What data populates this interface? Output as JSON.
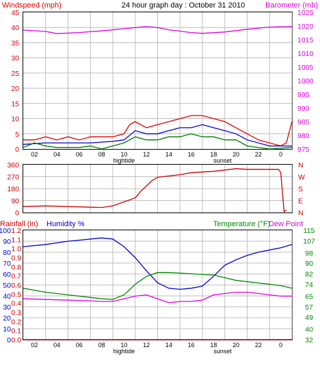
{
  "header": {
    "left_label": "Windspeed (mph)",
    "title": "24 hour graph day : October 31 2010",
    "right_label": "Barometer (mb)"
  },
  "colors": {
    "wind": "#dd0000",
    "gust": "#0000cc",
    "wind_green": "#007700",
    "baro": "#dd00dd",
    "direction": "#cc0000",
    "humidity": "#0000cc",
    "temperature": "#008800",
    "dewpoint": "#dd00dd",
    "rain": "#cc0000"
  },
  "x_ticks": [
    "02",
    "04",
    "06",
    "08",
    "10",
    "12",
    "14",
    "16",
    "18",
    "20",
    "22",
    "0"
  ],
  "annotations": {
    "hightide": "hightide",
    "sunset": "sunset"
  },
  "panel3_labels": {
    "rain": "Rainfall (in)",
    "humidity": "Humidity %",
    "temperature": "Temperature (°F)",
    "dewpoint": "Dew Point"
  },
  "chart_data": [
    {
      "type": "line",
      "name_key": "wind_baro",
      "title": "24 hour graph day : October 31 2010",
      "xlim": [
        0,
        24
      ],
      "y_left": {
        "label": "Windspeed (mph)",
        "lim": [
          0,
          45
        ],
        "ticks": [
          "0",
          "5",
          "10",
          "15",
          "20",
          "25",
          "30",
          "35",
          "40",
          "45"
        ]
      },
      "y_right": {
        "label": "Barometer (mb)",
        "lim": [
          975,
          1025
        ],
        "ticks": [
          "975",
          "980",
          "985",
          "990",
          "995",
          "1000",
          "1005",
          "1010",
          "1015",
          "1020",
          "1025"
        ]
      },
      "series": [
        {
          "axis": "right",
          "color_key": "baro",
          "points": [
            [
              0,
              1018.5
            ],
            [
              2,
              1018
            ],
            [
              3,
              1017.2
            ],
            [
              5,
              1017.6
            ],
            [
              7,
              1018.2
            ],
            [
              9,
              1019
            ],
            [
              11,
              1019.8
            ],
            [
              12,
              1019.4
            ],
            [
              13,
              1018.6
            ],
            [
              15,
              1017.6
            ],
            [
              16,
              1017.3
            ],
            [
              18,
              1017.8
            ],
            [
              20,
              1018.8
            ],
            [
              22,
              1019.6
            ],
            [
              24,
              1019.8
            ]
          ]
        },
        {
          "axis": "left",
          "color_key": "wind",
          "points": [
            [
              0,
              3
            ],
            [
              1,
              3
            ],
            [
              2,
              4
            ],
            [
              3,
              3
            ],
            [
              4,
              4
            ],
            [
              5,
              3
            ],
            [
              6,
              4
            ],
            [
              7,
              4
            ],
            [
              8,
              4
            ],
            [
              9,
              5
            ],
            [
              9.5,
              8
            ],
            [
              10,
              9
            ],
            [
              11,
              7
            ],
            [
              12,
              8
            ],
            [
              13,
              9
            ],
            [
              14,
              10
            ],
            [
              15,
              11
            ],
            [
              16,
              11
            ],
            [
              17,
              10
            ],
            [
              18,
              9
            ],
            [
              19,
              7
            ],
            [
              20,
              5
            ],
            [
              21,
              3
            ],
            [
              22,
              2
            ],
            [
              23,
              1
            ],
            [
              23.5,
              2
            ],
            [
              24,
              9
            ]
          ]
        },
        {
          "axis": "left",
          "color_key": "gust",
          "points": [
            [
              0,
              1.5
            ],
            [
              2,
              2
            ],
            [
              4,
              2
            ],
            [
              6,
              2
            ],
            [
              8,
              2.5
            ],
            [
              9,
              3
            ],
            [
              10,
              6
            ],
            [
              11,
              5
            ],
            [
              12,
              5
            ],
            [
              13,
              6
            ],
            [
              14,
              7
            ],
            [
              15,
              7
            ],
            [
              16,
              8
            ],
            [
              17,
              7
            ],
            [
              18,
              6
            ],
            [
              19,
              5
            ],
            [
              20,
              3
            ],
            [
              22,
              1
            ],
            [
              24,
              1
            ]
          ]
        },
        {
          "axis": "left",
          "color_key": "wind_green",
          "points": [
            [
              0,
              0.5
            ],
            [
              1,
              2
            ],
            [
              2,
              1
            ],
            [
              3,
              0.5
            ],
            [
              4,
              0.5
            ],
            [
              5,
              0.5
            ],
            [
              6,
              1
            ],
            [
              7,
              0
            ],
            [
              8,
              1
            ],
            [
              9,
              2
            ],
            [
              10,
              4
            ],
            [
              11,
              3
            ],
            [
              12,
              3
            ],
            [
              13,
              4
            ],
            [
              14,
              4
            ],
            [
              15,
              5
            ],
            [
              16,
              4
            ],
            [
              17,
              4
            ],
            [
              18,
              3
            ],
            [
              19,
              3
            ],
            [
              20,
              1
            ],
            [
              22,
              0
            ],
            [
              24,
              0.5
            ]
          ]
        }
      ]
    },
    {
      "type": "line",
      "name_key": "wind_direction",
      "xlim": [
        0,
        24
      ],
      "y_left": {
        "lim": [
          0,
          360
        ],
        "ticks": [
          "0",
          "90",
          "180",
          "270",
          "360"
        ]
      },
      "y_right": {
        "ticks": [
          "N",
          "E",
          "S",
          "W",
          "N"
        ]
      },
      "series": [
        {
          "axis": "left",
          "color_key": "direction",
          "points": [
            [
              0,
              45
            ],
            [
              2,
              50
            ],
            [
              4,
              45
            ],
            [
              6,
              40
            ],
            [
              7,
              38
            ],
            [
              8,
              50
            ],
            [
              9,
              80
            ],
            [
              10,
              110
            ],
            [
              10.5,
              160
            ],
            [
              11,
              200
            ],
            [
              11.5,
              240
            ],
            [
              12,
              265
            ],
            [
              13,
              275
            ],
            [
              14,
              285
            ],
            [
              15,
              300
            ],
            [
              16,
              305
            ],
            [
              17,
              310
            ],
            [
              18,
              320
            ],
            [
              19,
              330
            ],
            [
              20,
              325
            ],
            [
              22,
              325
            ],
            [
              22.8,
              325
            ],
            [
              23,
              300
            ],
            [
              23.3,
              5
            ],
            [
              23.5,
              20
            ]
          ]
        }
      ]
    },
    {
      "type": "line",
      "name_key": "temp_humidity",
      "xlim": [
        0,
        24
      ],
      "y_left_outer": {
        "label": "Rainfall (in)",
        "lim": [
          0,
          1.2
        ],
        "ticks": [
          "0.0",
          "0.1",
          "0.2",
          "0.3",
          "0.4",
          "0.5",
          "0.6",
          "0.7",
          "0.8",
          "0.9",
          "1.0",
          "1.1",
          "1.2"
        ]
      },
      "y_left_inner": {
        "label": "Humidity %",
        "lim": [
          0,
          100
        ],
        "ticks": [
          "0",
          "10",
          "20",
          "30",
          "40",
          "50",
          "60",
          "70",
          "80",
          "90",
          "100"
        ]
      },
      "y_right": {
        "label": "Temperature (°F)",
        "lim": [
          32,
          115
        ],
        "ticks": [
          "32",
          "40",
          "49",
          "57",
          "65",
          "74",
          "82",
          "90",
          "98",
          "107",
          "115"
        ]
      },
      "series": [
        {
          "axis": "inner",
          "color_key": "humidity",
          "points": [
            [
              0,
              85
            ],
            [
              2,
              87
            ],
            [
              4,
              90
            ],
            [
              6,
              92
            ],
            [
              7,
              93
            ],
            [
              8,
              92
            ],
            [
              9,
              85
            ],
            [
              10,
              75
            ],
            [
              11,
              63
            ],
            [
              12,
              52
            ],
            [
              13,
              47
            ],
            [
              14,
              46
            ],
            [
              15,
              47
            ],
            [
              16,
              49
            ],
            [
              17,
              58
            ],
            [
              18,
              68
            ],
            [
              19,
              73
            ],
            [
              20,
              77
            ],
            [
              21,
              80
            ],
            [
              22,
              82
            ],
            [
              23,
              84
            ],
            [
              24,
              87
            ]
          ]
        },
        {
          "axis": "right",
          "color_key": "temperature",
          "points": [
            [
              0,
              71
            ],
            [
              2,
              68
            ],
            [
              4,
              66
            ],
            [
              6,
              64
            ],
            [
              7,
              63
            ],
            [
              8,
              62.5
            ],
            [
              9,
              66
            ],
            [
              10,
              74
            ],
            [
              11,
              80
            ],
            [
              12,
              83
            ],
            [
              13,
              83
            ],
            [
              15,
              82
            ],
            [
              17,
              81
            ],
            [
              18,
              79
            ],
            [
              19,
              77
            ],
            [
              20,
              76
            ],
            [
              21,
              75
            ],
            [
              22,
              74
            ],
            [
              23,
              73
            ],
            [
              24,
              71
            ]
          ]
        },
        {
          "axis": "right",
          "color_key": "dewpoint",
          "points": [
            [
              0,
              63
            ],
            [
              2,
              62.5
            ],
            [
              4,
              62
            ],
            [
              6,
              61.5
            ],
            [
              7,
              61
            ],
            [
              8,
              61
            ],
            [
              9,
              63
            ],
            [
              10,
              65
            ],
            [
              11,
              66
            ],
            [
              12,
              63
            ],
            [
              13,
              60
            ],
            [
              14,
              61
            ],
            [
              15,
              61
            ],
            [
              16,
              62
            ],
            [
              17,
              66
            ],
            [
              18,
              67
            ],
            [
              19,
              68
            ],
            [
              20,
              68
            ],
            [
              21,
              67
            ],
            [
              22,
              66
            ],
            [
              23,
              65
            ],
            [
              24,
              65
            ]
          ]
        },
        {
          "axis": "outer",
          "color_key": "rain",
          "points": [
            [
              0,
              0
            ],
            [
              24,
              0
            ]
          ]
        }
      ]
    }
  ]
}
